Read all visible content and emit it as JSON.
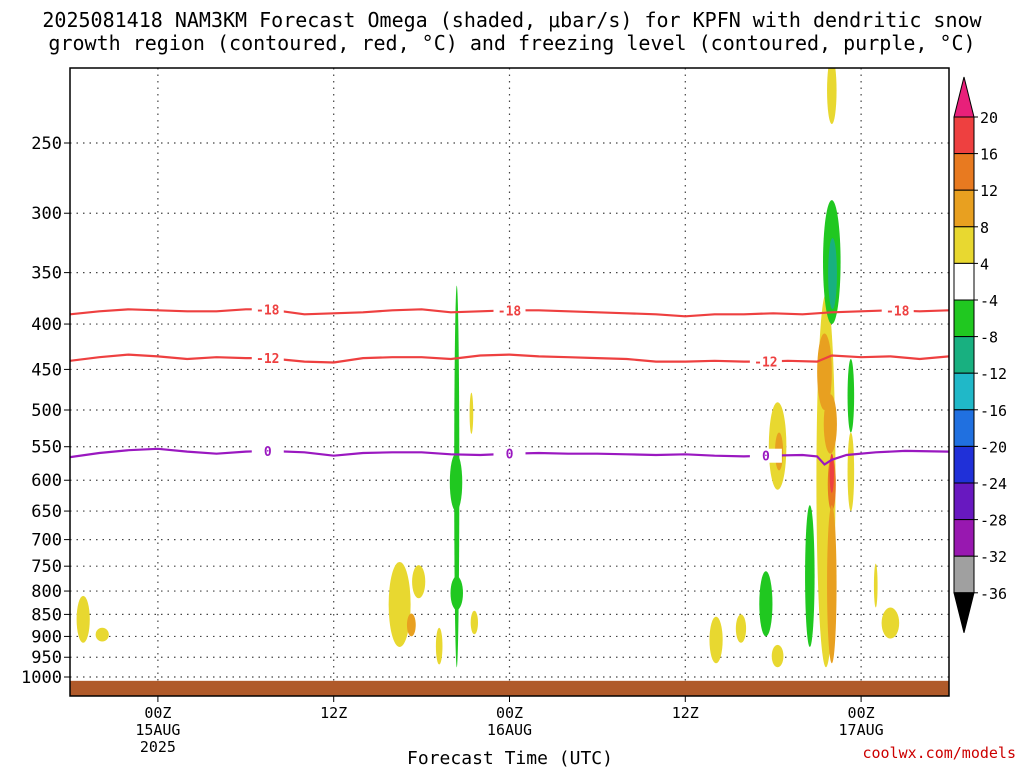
{
  "title_line1": "2025081418 NAM3KM Forecast Omega (shaded, μbar/s) for KPFN with dendritic snow",
  "title_line2": "growth region (contoured, red, °C) and freezing level (contoured, purple, °C)",
  "credit": "coolwx.com/models",
  "chart_data": {
    "type": "heatmap",
    "title": "2025081418 NAM3KM Forecast Omega (shaded, μbar/s) for KPFN with dendritic snow growth region (contoured, red, °C) and freezing level (contoured, purple, °C)",
    "xlabel": "Forecast Time (UTC)",
    "ylabel": "",
    "x_units": "hours since 2025-08-14 18Z",
    "xlim": [
      0,
      60
    ],
    "ylim": [
      1020,
      200
    ],
    "y_scale": "log",
    "grid": true,
    "x_ticks": [
      {
        "hour": 6,
        "lines": [
          "00Z",
          "15AUG",
          "2025"
        ]
      },
      {
        "hour": 18,
        "lines": [
          "12Z"
        ]
      },
      {
        "hour": 30,
        "lines": [
          "00Z",
          "16AUG"
        ]
      },
      {
        "hour": 42,
        "lines": [
          "12Z"
        ]
      },
      {
        "hour": 54,
        "lines": [
          "00Z",
          "17AUG"
        ]
      }
    ],
    "y_ticks": [
      250,
      300,
      350,
      400,
      450,
      500,
      550,
      600,
      650,
      700,
      750,
      800,
      850,
      900,
      950,
      1000
    ],
    "colorbar": {
      "labels": [
        "20",
        "16",
        "12",
        "8",
        "4",
        "-4",
        "-8",
        "-12",
        "-16",
        "-20",
        "-24",
        "-28",
        "-32",
        "-36"
      ],
      "levels": [
        20,
        16,
        12,
        8,
        4,
        -4,
        -8,
        -12,
        -16,
        -20,
        -24,
        -28,
        -32,
        -36
      ],
      "colors": [
        "#e8207a",
        "#ee4040",
        "#e87a20",
        "#e8a020",
        "#e8d830",
        "#ffffff",
        "#20c820",
        "#18b080",
        "#20b8c8",
        "#2070e0",
        "#2030d8",
        "#6818c0",
        "#9818b0",
        "#a0a0a0",
        "#000000"
      ]
    },
    "contours": [
      {
        "label": "-18",
        "color": "#ee4040",
        "label_hours": [
          13.5,
          30,
          56.5
        ],
        "points": [
          [
            0,
            390
          ],
          [
            2,
            387
          ],
          [
            4,
            385
          ],
          [
            6,
            386
          ],
          [
            8,
            387
          ],
          [
            10,
            387
          ],
          [
            12,
            385
          ],
          [
            13.5,
            385
          ],
          [
            16,
            390
          ],
          [
            18,
            389
          ],
          [
            20,
            388
          ],
          [
            22,
            386
          ],
          [
            24,
            385
          ],
          [
            26,
            388
          ],
          [
            28,
            387
          ],
          [
            30,
            386
          ],
          [
            32,
            386
          ],
          [
            34,
            387
          ],
          [
            36,
            388
          ],
          [
            38,
            389
          ],
          [
            40,
            390
          ],
          [
            42,
            392
          ],
          [
            44,
            390
          ],
          [
            46,
            390
          ],
          [
            48,
            389
          ],
          [
            50,
            390
          ],
          [
            52,
            388
          ],
          [
            54,
            387
          ],
          [
            56,
            386
          ],
          [
            58,
            387
          ],
          [
            60,
            386
          ]
        ]
      },
      {
        "label": "-12",
        "color": "#ee4040",
        "label_hours": [
          13.5,
          47.5
        ],
        "points": [
          [
            0,
            440
          ],
          [
            2,
            436
          ],
          [
            4,
            433
          ],
          [
            6,
            435
          ],
          [
            8,
            438
          ],
          [
            10,
            436
          ],
          [
            12,
            437
          ],
          [
            13.5,
            437
          ],
          [
            16,
            441
          ],
          [
            18,
            442
          ],
          [
            20,
            437
          ],
          [
            22,
            436
          ],
          [
            24,
            436
          ],
          [
            26,
            438
          ],
          [
            28,
            434
          ],
          [
            30,
            433
          ],
          [
            32,
            435
          ],
          [
            34,
            436
          ],
          [
            36,
            437
          ],
          [
            38,
            438
          ],
          [
            40,
            441
          ],
          [
            42,
            441
          ],
          [
            44,
            440
          ],
          [
            46,
            441
          ],
          [
            47.5,
            441
          ],
          [
            49,
            440
          ],
          [
            51,
            441
          ],
          [
            52,
            434
          ],
          [
            54,
            436
          ],
          [
            56,
            435
          ],
          [
            58,
            438
          ],
          [
            60,
            435
          ]
        ]
      },
      {
        "label": "0",
        "color": "#9a18c0",
        "label_hours": [
          13.5,
          30,
          47.5
        ],
        "points": [
          [
            0,
            565
          ],
          [
            2,
            559
          ],
          [
            4,
            555
          ],
          [
            6,
            553
          ],
          [
            8,
            557
          ],
          [
            10,
            560
          ],
          [
            12,
            557
          ],
          [
            13.5,
            556
          ],
          [
            16,
            558
          ],
          [
            18,
            563
          ],
          [
            20,
            559
          ],
          [
            22,
            558
          ],
          [
            24,
            558
          ],
          [
            26,
            561
          ],
          [
            28,
            562
          ],
          [
            30,
            560
          ],
          [
            32,
            559
          ],
          [
            34,
            560
          ],
          [
            36,
            560
          ],
          [
            38,
            561
          ],
          [
            40,
            562
          ],
          [
            42,
            561
          ],
          [
            44,
            563
          ],
          [
            46,
            564
          ],
          [
            47.5,
            563
          ],
          [
            50,
            562
          ],
          [
            51,
            564
          ],
          [
            51.5,
            576
          ],
          [
            52,
            569
          ],
          [
            53,
            562
          ],
          [
            55,
            558
          ],
          [
            57,
            556
          ],
          [
            60,
            557
          ]
        ]
      }
    ],
    "omega_cells": [
      {
        "hour": 0.9,
        "p_top": 810,
        "p_bot": 915,
        "width_h": 0.9,
        "value": 5
      },
      {
        "hour": 2.2,
        "p_top": 880,
        "p_bot": 912,
        "width_h": 0.9,
        "value": 4
      },
      {
        "hour": 22.5,
        "p_top": 742,
        "p_bot": 925,
        "width_h": 1.5,
        "value": 5
      },
      {
        "hour": 23.8,
        "p_top": 748,
        "p_bot": 815,
        "width_h": 0.9,
        "value": 5
      },
      {
        "hour": 23.3,
        "p_top": 848,
        "p_bot": 900,
        "width_h": 0.6,
        "value": 9
      },
      {
        "hour": 25.2,
        "p_top": 880,
        "p_bot": 968,
        "width_h": 0.45,
        "value": 5
      },
      {
        "hour": 26.4,
        "p_top": 362,
        "p_bot": 975,
        "width_h": 0.35,
        "value": -6
      },
      {
        "hour": 26.35,
        "p_top": 560,
        "p_bot": 650,
        "width_h": 0.85,
        "value": -7
      },
      {
        "hour": 26.4,
        "p_top": 770,
        "p_bot": 840,
        "width_h": 0.85,
        "value": -7
      },
      {
        "hour": 27.4,
        "p_top": 478,
        "p_bot": 532,
        "width_h": 0.25,
        "value": 5
      },
      {
        "hour": 27.6,
        "p_top": 842,
        "p_bot": 895,
        "width_h": 0.5,
        "value": 5
      },
      {
        "hour": 44.1,
        "p_top": 855,
        "p_bot": 965,
        "width_h": 0.9,
        "value": 5
      },
      {
        "hour": 45.8,
        "p_top": 850,
        "p_bot": 915,
        "width_h": 0.7,
        "value": 5
      },
      {
        "hour": 48.3,
        "p_top": 490,
        "p_bot": 615,
        "width_h": 1.2,
        "value": 5
      },
      {
        "hour": 48.4,
        "p_top": 530,
        "p_bot": 585,
        "width_h": 0.55,
        "value": 8
      },
      {
        "hour": 47.5,
        "p_top": 760,
        "p_bot": 900,
        "width_h": 0.9,
        "value": -7
      },
      {
        "hour": 48.3,
        "p_top": 920,
        "p_bot": 975,
        "width_h": 0.8,
        "value": 5
      },
      {
        "hour": 50.5,
        "p_top": 640,
        "p_bot": 925,
        "width_h": 0.65,
        "value": -7
      },
      {
        "hour": 51.6,
        "p_top": 370,
        "p_bot": 975,
        "width_h": 1.3,
        "value": 6
      },
      {
        "hour": 51.5,
        "p_top": 410,
        "p_bot": 500,
        "width_h": 1.0,
        "value": 9
      },
      {
        "hour": 51.9,
        "p_top": 480,
        "p_bot": 560,
        "width_h": 0.9,
        "value": 8
      },
      {
        "hour": 52.0,
        "p_top": 565,
        "p_bot": 650,
        "width_h": 0.55,
        "value": 15
      },
      {
        "hour": 52.0,
        "p_top": 640,
        "p_bot": 965,
        "width_h": 0.65,
        "value": 10
      },
      {
        "hour": 52.0,
        "p_top": 560,
        "p_bot": 620,
        "width_h": 0.3,
        "value": 18
      },
      {
        "hour": 52.0,
        "p_top": 200,
        "p_bot": 238,
        "width_h": 0.65,
        "value": 5
      },
      {
        "hour": 52.0,
        "p_top": 290,
        "p_bot": 400,
        "width_h": 1.2,
        "value": -7
      },
      {
        "hour": 52.05,
        "p_top": 320,
        "p_bot": 385,
        "width_h": 0.6,
        "value": -10
      },
      {
        "hour": 53.3,
        "p_top": 438,
        "p_bot": 530,
        "width_h": 0.45,
        "value": -6
      },
      {
        "hour": 53.3,
        "p_top": 530,
        "p_bot": 650,
        "width_h": 0.45,
        "value": 5
      },
      {
        "hour": 55.0,
        "p_top": 745,
        "p_bot": 835,
        "width_h": 0.25,
        "value": 5
      },
      {
        "hour": 56.0,
        "p_top": 835,
        "p_bot": 905,
        "width_h": 1.2,
        "value": 5
      }
    ],
    "terrain": {
      "color": "#b05a2a",
      "p_surface": 1010
    }
  }
}
